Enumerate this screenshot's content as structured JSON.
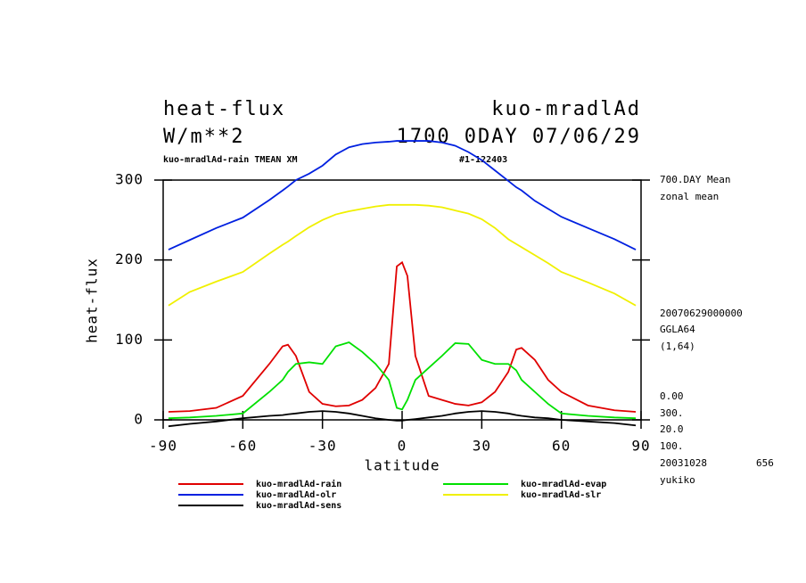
{
  "chart_data": {
    "type": "line",
    "title_left": "heat-flux",
    "title_right": "kuo-mradlAd",
    "units": "W/m**2",
    "time_label": "1700 0DAY 07/06/29",
    "subtitle_left": "kuo-mradlAd-rain TMEAN XM",
    "subtitle_right": "#1-122403",
    "y_label": "heat-flux",
    "x_label": "latitude",
    "side_notes": [
      "700.DAY Mean",
      "zonal mean",
      "20070629000000",
      "GGLA64",
      "(1,64)",
      "0.00",
      "300.",
      "20.0",
      "100.",
      "20031028",
      "656",
      "yukiko"
    ],
    "xlim": [
      -90,
      90
    ],
    "xticks": [
      -90,
      -60,
      -30,
      0,
      30,
      60,
      90
    ],
    "ylim": [
      0,
      300
    ],
    "yticks": [
      0,
      100,
      200,
      300
    ],
    "x": [
      -88,
      -80,
      -70,
      -60,
      -50,
      -45,
      -43,
      -40,
      -35,
      -30,
      -25,
      -20,
      -15,
      -10,
      -5,
      -2,
      0,
      2,
      5,
      10,
      15,
      20,
      25,
      30,
      35,
      40,
      43,
      45,
      50,
      55,
      60,
      70,
      80,
      88
    ],
    "series": [
      {
        "name": "kuo-mradlAd-rain",
        "color": "#e00000",
        "values": [
          10,
          11,
          15,
          30,
          70,
          92,
          94,
          80,
          35,
          20,
          17,
          18,
          25,
          40,
          70,
          192,
          197,
          180,
          80,
          30,
          25,
          20,
          18,
          22,
          35,
          60,
          88,
          90,
          75,
          50,
          35,
          18,
          12,
          10
        ]
      },
      {
        "name": "kuo-mradlAd-olr",
        "color": "#0020e0",
        "values": [
          213,
          225,
          240,
          253,
          275,
          287,
          292,
          300,
          308,
          318,
          332,
          341,
          345,
          347,
          348,
          349,
          349,
          349,
          349,
          349,
          347,
          343,
          335,
          325,
          312,
          299,
          291,
          287,
          274,
          264,
          254,
          240,
          226,
          213
        ]
      },
      {
        "name": "kuo-mradlAd-sens",
        "color": "#000000",
        "values": [
          -8,
          -5,
          -2,
          2,
          5,
          6,
          7,
          8,
          10,
          11,
          10,
          8,
          5,
          2,
          0,
          -1,
          -1,
          0,
          1,
          3,
          5,
          8,
          10,
          11,
          10,
          8,
          6,
          5,
          3,
          2,
          0,
          -2,
          -4,
          -7
        ]
      },
      {
        "name": "kuo-mradlAd-evap",
        "color": "#00e000",
        "values": [
          2,
          3,
          5,
          8,
          35,
          50,
          60,
          70,
          72,
          70,
          92,
          97,
          85,
          70,
          50,
          15,
          13,
          25,
          50,
          65,
          80,
          96,
          95,
          75,
          70,
          70,
          62,
          50,
          35,
          20,
          8,
          5,
          3,
          2
        ]
      },
      {
        "name": "kuo-mradlAd-slr",
        "color": "#f0f000",
        "values": [
          143,
          160,
          173,
          185,
          208,
          219,
          223,
          230,
          241,
          250,
          257,
          261,
          264,
          267,
          269,
          269,
          269,
          269,
          269,
          268,
          266,
          262,
          258,
          251,
          240,
          226,
          220,
          216,
          206,
          196,
          185,
          172,
          158,
          143
        ]
      }
    ]
  }
}
